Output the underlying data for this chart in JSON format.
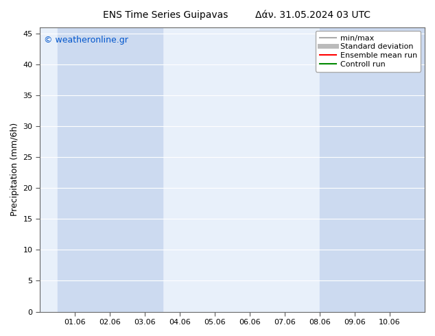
{
  "title_left": "ENS Time Series Guipavas",
  "title_right": "Δάν. 31.05.2024 03 UTC",
  "ylabel": "Precipitation (mm/6h)",
  "ylim": [
    0,
    46
  ],
  "yticks": [
    0,
    5,
    10,
    15,
    20,
    25,
    30,
    35,
    40,
    45
  ],
  "xtick_labels": [
    "01.06",
    "02.06",
    "03.06",
    "04.06",
    "05.06",
    "06.06",
    "07.06",
    "08.06",
    "09.06",
    "10.06"
  ],
  "watermark": "© weatheronline.gr",
  "watermark_color": "#0055cc",
  "plot_bg_color": "#e8f0fa",
  "band_color": "#ccdaf0",
  "band_xranges": [
    [
      0.0,
      3.0
    ],
    [
      7.5,
      10.5
    ]
  ],
  "legend_entries": [
    {
      "label": "min/max",
      "color": "#aaaaaa",
      "lw": 1.5
    },
    {
      "label": "Standard deviation",
      "color": "#bbbbbb",
      "lw": 5
    },
    {
      "label": "Ensemble mean run",
      "color": "#ff0000",
      "lw": 1.5
    },
    {
      "label": "Controll run",
      "color": "#008800",
      "lw": 1.5
    }
  ],
  "n_xticks": 10,
  "xmin": -0.5,
  "xmax": 10.5,
  "xtick_positions": [
    0.5,
    1.5,
    2.5,
    3.5,
    4.5,
    5.5,
    6.5,
    7.5,
    8.5,
    9.5
  ],
  "figsize": [
    6.34,
    4.9
  ],
  "dpi": 100
}
